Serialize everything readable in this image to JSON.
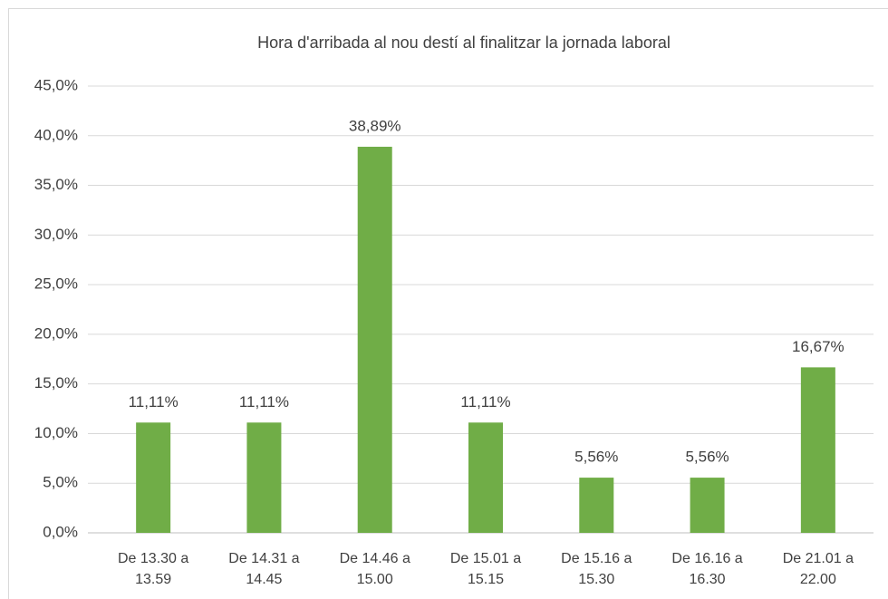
{
  "chart_data": {
    "type": "bar",
    "title": "Hora d'arribada al nou destí al finalitzar la jornada laboral",
    "categories": [
      "De 13.30 a 13.59",
      "De 14.31 a 14.45",
      "De 14.46 a 15.00",
      "De 15.01 a 15.15",
      "De 15.16 a 15.30",
      "De 16.16 a 16.30",
      "De 21.01 a 22.00"
    ],
    "values": [
      11.11,
      11.11,
      38.89,
      11.11,
      5.56,
      5.56,
      16.67
    ],
    "value_labels": [
      "11,11%",
      "11,11%",
      "38,89%",
      "11,11%",
      "5,56%",
      "5,56%",
      "16,67%"
    ],
    "color": "#70ad47",
    "ylim": [
      0,
      45
    ],
    "yticks": [
      {
        "value": 0,
        "label": "0,0%"
      },
      {
        "value": 5,
        "label": "5,0%"
      },
      {
        "value": 10,
        "label": "10,0%"
      },
      {
        "value": 15,
        "label": "15,0%"
      },
      {
        "value": 20,
        "label": "20,0%"
      },
      {
        "value": 25,
        "label": "25,0%"
      },
      {
        "value": 30,
        "label": "30,0%"
      },
      {
        "value": 35,
        "label": "35,0%"
      },
      {
        "value": 40,
        "label": "40,0%"
      },
      {
        "value": 45,
        "label": "45,0%"
      }
    ],
    "grid": true
  }
}
